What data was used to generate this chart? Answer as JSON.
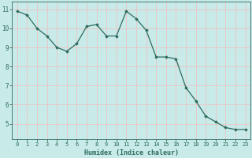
{
  "xlabel": "Humidex (Indice chaleur)",
  "x": [
    0,
    1,
    2,
    3,
    4,
    5,
    6,
    7,
    8,
    9,
    10,
    11,
    12,
    13,
    14,
    15,
    16,
    17,
    18,
    19,
    20,
    21,
    22,
    23
  ],
  "y": [
    10.9,
    10.7,
    10.0,
    9.6,
    9.0,
    8.8,
    9.2,
    10.1,
    10.2,
    9.6,
    9.6,
    10.9,
    10.5,
    9.9,
    8.5,
    8.5,
    8.4,
    6.9,
    6.2,
    5.4,
    5.1,
    4.8,
    4.7,
    4.7
  ],
  "line_color": "#2e6b5e",
  "marker": "D",
  "marker_size": 1.8,
  "bg_color": "#c8eae8",
  "grid_color": "#e8c8c8",
  "tick_color": "#2e6b5e",
  "label_color": "#2e6b5e",
  "ylim": [
    4.2,
    11.4
  ],
  "yticks": [
    5,
    6,
    7,
    8,
    9,
    10,
    11
  ],
  "xlim": [
    -0.5,
    23.5
  ],
  "tick_fontsize": 5.0,
  "xlabel_fontsize": 6.0
}
